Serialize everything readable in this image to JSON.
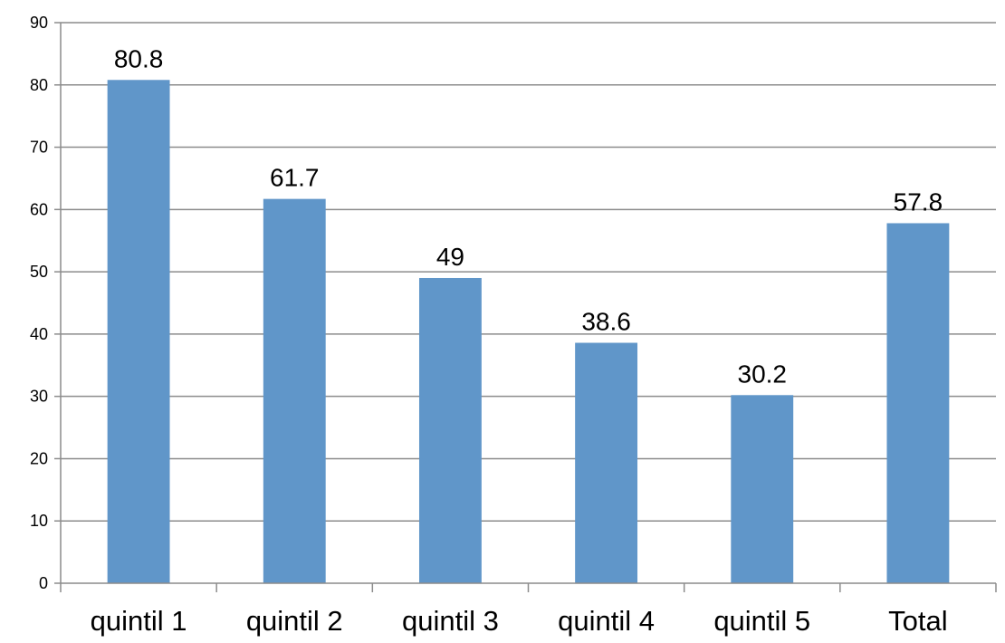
{
  "chart_data": {
    "type": "bar",
    "title": "",
    "xlabel": "",
    "ylabel": "",
    "categories": [
      "quintil 1",
      "quintil 2",
      "quintil 3",
      "quintil 4",
      "quintil 5",
      "Total"
    ],
    "values": [
      80.8,
      61.7,
      49,
      38.6,
      30.2,
      57.8
    ],
    "data_labels": [
      "80.8",
      "61.7",
      "49",
      "38.6",
      "30.2",
      "57.8"
    ],
    "ylim": [
      0,
      90
    ],
    "yticks": [
      0,
      10,
      20,
      30,
      40,
      50,
      60,
      70,
      80,
      90
    ],
    "grid": true,
    "legend": "none",
    "bar_color": "#6096C9",
    "grid_color": "#8C8C8C"
  }
}
